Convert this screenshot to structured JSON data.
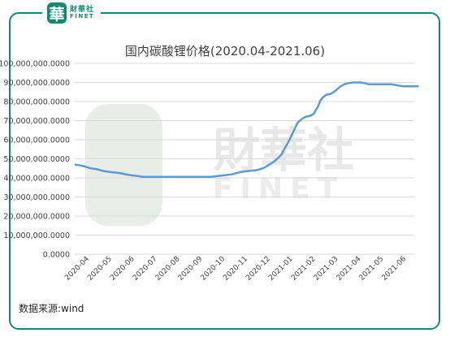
{
  "logo": {
    "mark": "華",
    "cn": "財華社",
    "en": "FINET"
  },
  "watermark": {
    "cn": "財華社",
    "en": "FINET"
  },
  "source_note": "数据来源:wind",
  "colors": {
    "frame": "#138a70",
    "line": "#5b9bd5",
    "grid": "#d9d9d9",
    "watermark": "#e8e8e8"
  },
  "chart_data": {
    "type": "line",
    "title": "国内碳酸锂价格(2020.04-2021.06)",
    "xlabel": "",
    "ylabel": "",
    "ylim": [
      0,
      100000000
    ],
    "y_ticks": [
      "100,000,000.0000",
      "90,000,000.0000",
      "80,000,000.0000",
      "70,000,000.0000",
      "60,000,000.0000",
      "50,000,000.0000",
      "40,000,000.0000",
      "30,000,000.0000",
      "20,000,000.0000",
      "10,000,000.0000",
      "0.0000"
    ],
    "y_tick_values": [
      100000000,
      90000000,
      80000000,
      70000000,
      60000000,
      50000000,
      40000000,
      30000000,
      20000000,
      10000000,
      0
    ],
    "categories": [
      "2020-04",
      "2020-05",
      "2020-06",
      "2020-07",
      "2020-08",
      "2020-09",
      "2020-10",
      "2020-11",
      "2020-12",
      "2021-01",
      "2021-02",
      "2021-03",
      "2021-04",
      "2021-05",
      "2021-06"
    ],
    "grid": true,
    "legend": "none",
    "series": [
      {
        "values": [
          [
            0.0,
            47000000
          ],
          [
            0.25,
            46500000
          ],
          [
            0.45,
            46000000
          ],
          [
            0.7,
            45000000
          ],
          [
            1.0,
            44500000
          ],
          [
            1.3,
            43500000
          ],
          [
            1.6,
            43000000
          ],
          [
            2.0,
            42500000
          ],
          [
            2.4,
            41500000
          ],
          [
            2.8,
            41000000
          ],
          [
            3.0,
            40500000
          ],
          [
            3.5,
            40500000
          ],
          [
            4.0,
            40500000
          ],
          [
            5.0,
            40500000
          ],
          [
            6.0,
            40500000
          ],
          [
            6.3,
            41000000
          ],
          [
            6.7,
            41500000
          ],
          [
            7.0,
            42000000
          ],
          [
            7.3,
            43000000
          ],
          [
            7.6,
            43500000
          ],
          [
            8.0,
            44000000
          ],
          [
            8.2,
            44500000
          ],
          [
            8.4,
            45500000
          ],
          [
            8.6,
            47000000
          ],
          [
            8.8,
            48500000
          ],
          [
            9.0,
            50500000
          ],
          [
            9.15,
            52500000
          ],
          [
            9.25,
            55000000
          ],
          [
            9.35,
            57000000
          ],
          [
            9.45,
            59000000
          ],
          [
            9.55,
            61500000
          ],
          [
            9.65,
            64000000
          ],
          [
            9.75,
            66500000
          ],
          [
            9.85,
            69000000
          ],
          [
            9.95,
            70000000
          ],
          [
            10.05,
            71000000
          ],
          [
            10.2,
            72000000
          ],
          [
            10.4,
            72500000
          ],
          [
            10.55,
            73500000
          ],
          [
            10.65,
            75500000
          ],
          [
            10.75,
            77500000
          ],
          [
            10.85,
            80500000
          ],
          [
            10.95,
            82000000
          ],
          [
            11.1,
            83500000
          ],
          [
            11.3,
            84000000
          ],
          [
            11.45,
            85000000
          ],
          [
            11.6,
            86500000
          ],
          [
            11.75,
            88000000
          ],
          [
            11.9,
            89000000
          ],
          [
            12.05,
            89500000
          ],
          [
            12.3,
            90000000
          ],
          [
            12.6,
            90000000
          ],
          [
            12.85,
            89500000
          ],
          [
            13.0,
            89000000
          ],
          [
            13.5,
            89000000
          ],
          [
            14.0,
            89000000
          ],
          [
            14.25,
            88500000
          ],
          [
            14.5,
            88000000
          ],
          [
            15.0,
            88000000
          ],
          [
            15.2,
            88000000
          ]
        ]
      }
    ]
  }
}
